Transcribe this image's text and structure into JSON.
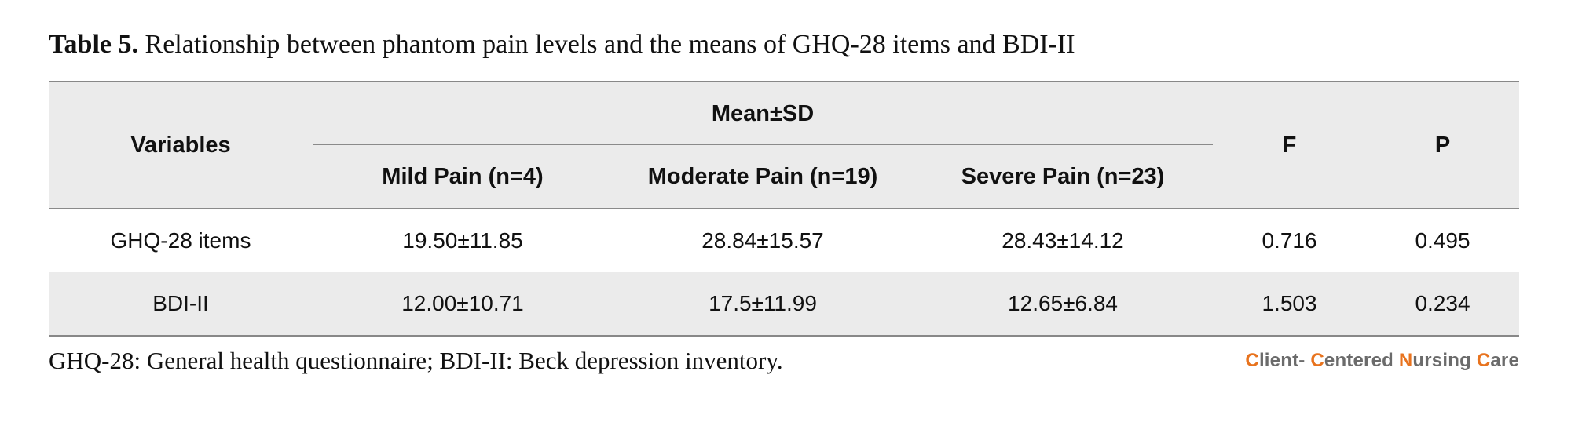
{
  "caption": {
    "label": "Table 5.",
    "text": " Relationship between phantom pain levels and the means of GHQ-28 items and BDI-II"
  },
  "table": {
    "header": {
      "variables": "Variables",
      "group": "Mean±SD",
      "mild": "Mild Pain (n=4)",
      "moderate": "Moderate Pain (n=19)",
      "severe": "Severe Pain (n=23)",
      "f": "F",
      "p": "P"
    },
    "rows": [
      {
        "variable": "GHQ-28 items",
        "mild": "19.50±11.85",
        "moderate": "28.84±15.57",
        "severe": "28.43±14.12",
        "f": "0.716",
        "p": "0.495"
      },
      {
        "variable": "BDI-II",
        "mild": "12.00±10.71",
        "moderate": "17.5±11.99",
        "severe": "12.65±6.84",
        "f": "1.503",
        "p": "0.234"
      }
    ]
  },
  "footnote": "GHQ-28: General health questionnaire; BDI-II: Beck depression inventory.",
  "journal_logo": {
    "c1": "C",
    "w1": "lient- ",
    "c2": "C",
    "w2": "entered ",
    "c3": "N",
    "w3": "ursing ",
    "c4": "C",
    "w4": "are"
  },
  "colors": {
    "accent": "#e8731e",
    "logo_gray": "#6b6b6b",
    "header_bg": "#ebebeb"
  }
}
